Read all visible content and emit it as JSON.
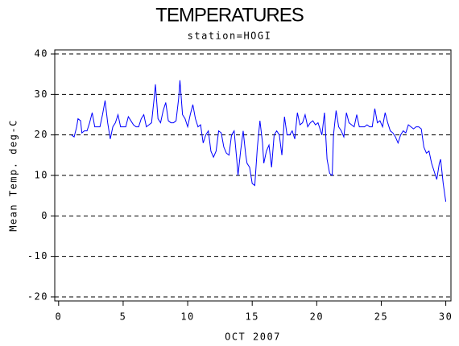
{
  "chart_data": {
    "type": "line",
    "title": "TEMPERATURES",
    "subtitle": "station=HOGI",
    "x_label": "OCT 2007",
    "y_label": "Mean Temp. deg-C",
    "xlim": [
      -0.3,
      30.4
    ],
    "ylim": [
      -21,
      41
    ],
    "xticks": [
      0,
      5,
      10,
      15,
      20,
      25,
      30
    ],
    "yticks": [
      -20,
      -10,
      0,
      10,
      20,
      30,
      40
    ],
    "grid": true,
    "x": [
      1.0,
      1.2,
      1.4,
      1.5,
      1.7,
      1.8,
      2.0,
      2.2,
      2.4,
      2.6,
      2.8,
      3.0,
      3.2,
      3.4,
      3.6,
      3.8,
      4.0,
      4.2,
      4.4,
      4.6,
      4.8,
      5.0,
      5.2,
      5.4,
      5.6,
      5.8,
      6.0,
      6.2,
      6.4,
      6.6,
      6.8,
      7.0,
      7.2,
      7.4,
      7.5,
      7.7,
      7.9,
      8.1,
      8.3,
      8.5,
      8.7,
      8.9,
      9.1,
      9.3,
      9.4,
      9.6,
      9.8,
      10.0,
      10.2,
      10.4,
      10.6,
      10.8,
      11.0,
      11.2,
      11.4,
      11.6,
      11.8,
      12.0,
      12.2,
      12.4,
      12.6,
      12.8,
      13.0,
      13.2,
      13.4,
      13.6,
      13.8,
      13.9,
      14.1,
      14.3,
      14.5,
      14.6,
      14.8,
      15.0,
      15.2,
      15.4,
      15.6,
      15.8,
      15.9,
      16.1,
      16.3,
      16.5,
      16.7,
      16.9,
      17.1,
      17.3,
      17.5,
      17.7,
      17.9,
      18.1,
      18.3,
      18.5,
      18.7,
      18.9,
      19.1,
      19.3,
      19.5,
      19.7,
      19.9,
      20.1,
      20.3,
      20.4,
      20.6,
      20.8,
      21.0,
      21.2,
      21.3,
      21.5,
      21.7,
      21.9,
      22.1,
      22.3,
      22.5,
      22.7,
      22.9,
      23.1,
      23.3,
      23.5,
      23.7,
      23.9,
      24.1,
      24.3,
      24.5,
      24.7,
      24.9,
      25.1,
      25.3,
      25.5,
      25.7,
      25.9,
      26.1,
      26.3,
      26.5,
      26.7,
      26.9,
      27.1,
      27.3,
      27.5,
      27.7,
      27.9,
      28.1,
      28.3,
      28.5,
      28.7,
      28.9,
      29.1,
      29.3,
      29.5,
      29.6,
      29.8,
      30.0
    ],
    "series": [
      {
        "color": "#0000ff",
        "values": [
          20,
          19.5,
          22,
          24,
          23.5,
          20.5,
          21,
          21,
          23,
          25.5,
          22,
          22,
          22,
          25,
          28.5,
          23,
          19,
          22,
          23,
          25,
          22,
          22,
          22,
          24.5,
          23.5,
          22.5,
          22,
          22,
          24,
          25,
          22,
          22.5,
          23,
          29,
          32.5,
          24,
          23,
          26,
          28,
          23.5,
          23,
          23,
          23.5,
          29,
          33.5,
          25,
          24,
          22,
          25,
          27.5,
          24,
          22,
          22.5,
          18,
          20,
          21,
          16,
          14.5,
          16,
          21,
          20.5,
          17,
          15.5,
          15,
          20,
          21,
          14,
          10,
          16,
          21,
          15,
          13,
          12,
          8,
          7.5,
          17,
          23.5,
          18,
          13,
          16,
          17.5,
          12,
          20,
          21,
          20,
          15,
          24.5,
          20,
          20,
          21,
          19,
          25.5,
          22.5,
          23,
          25,
          22,
          23,
          23.5,
          22.5,
          23,
          21,
          20,
          25.5,
          14,
          10.5,
          10,
          20,
          26,
          22,
          21,
          19.5,
          25.5,
          23,
          22.5,
          22,
          25,
          22,
          22,
          22,
          22.5,
          22,
          22,
          26.5,
          23,
          23.5,
          22,
          25.5,
          23,
          21,
          20.5,
          19.5,
          18,
          20,
          21,
          20.5,
          22.5,
          22,
          21.5,
          22,
          22,
          21.5,
          17,
          15.5,
          16,
          13,
          11,
          9,
          13,
          14,
          8,
          3.5
        ]
      }
    ]
  }
}
